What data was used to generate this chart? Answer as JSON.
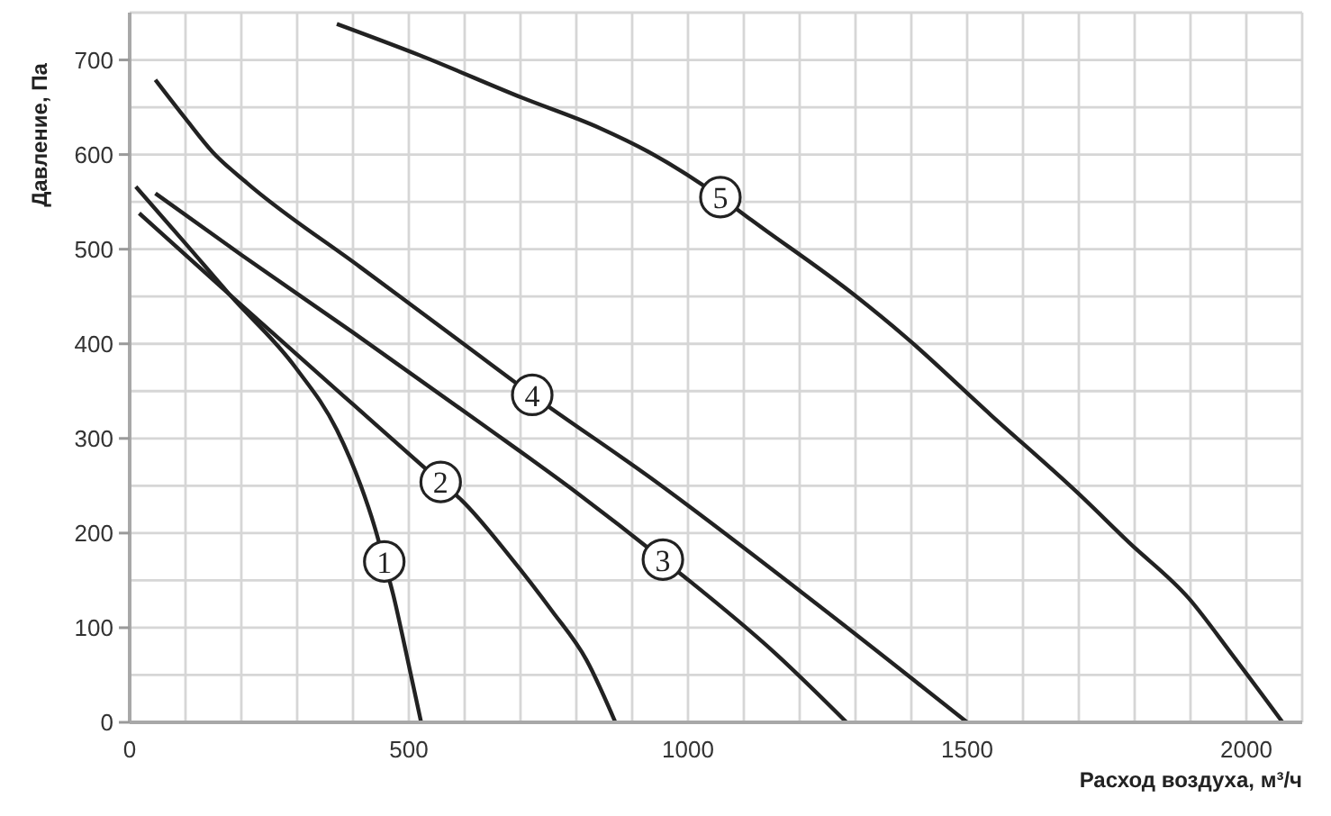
{
  "chart_data": {
    "type": "line",
    "xlabel": "Расход воздуха, м³/ч",
    "ylabel": "Давление, Па",
    "xlim": [
      0,
      2100
    ],
    "ylim": [
      0,
      750
    ],
    "xticks": [
      0,
      {
        "value": 100,
        "label": null
      },
      {
        "value": 200,
        "label": null
      },
      {
        "value": 300,
        "label": null
      },
      {
        "value": 400,
        "label": null
      },
      500,
      {
        "value": 600,
        "label": null
      },
      {
        "value": 700,
        "label": null
      },
      {
        "value": 800,
        "label": null
      },
      {
        "value": 900,
        "label": null
      },
      1000,
      {
        "value": 1100,
        "label": null
      },
      {
        "value": 1200,
        "label": null
      },
      {
        "value": 1300,
        "label": null
      },
      {
        "value": 1400,
        "label": null
      },
      1500,
      {
        "value": 1600,
        "label": null
      },
      {
        "value": 1700,
        "label": null
      },
      {
        "value": 1800,
        "label": null
      },
      {
        "value": 1900,
        "label": null
      },
      2000,
      {
        "value": 2100,
        "label": null
      }
    ],
    "yticks": [
      0,
      {
        "value": 50,
        "label": null
      },
      100,
      {
        "value": 150,
        "label": null
      },
      200,
      {
        "value": 250,
        "label": null
      },
      300,
      {
        "value": 350,
        "label": null
      },
      400,
      {
        "value": 450,
        "label": null
      },
      500,
      {
        "value": 550,
        "label": null
      },
      600,
      {
        "value": 650,
        "label": null
      },
      700,
      {
        "value": 750,
        "label": null
      }
    ],
    "grid": true,
    "series": [
      {
        "name": "1",
        "color": "#222222",
        "x": [
          11,
          100,
          179,
          297,
          371,
          414,
          439,
          456,
          472,
          495,
          522
        ],
        "values": [
          566,
          506,
          452,
          375,
          309,
          250,
          206,
          170,
          135,
          74,
          0
        ]
      },
      {
        "name": "2",
        "color": "#222222",
        "x": [
          17,
          179,
          400,
          557,
          594,
          680,
          756,
          818,
          870
        ],
        "values": [
          538,
          452,
          336,
          254,
          235,
          176,
          118,
          66,
          0
        ]
      },
      {
        "name": "3",
        "color": "#222222",
        "x": [
          46,
          200,
          400,
          629,
          800,
          955,
          1158,
          1284
        ],
        "values": [
          559,
          494,
          412,
          316,
          243,
          172,
          72,
          0
        ]
      },
      {
        "name": "4",
        "color": "#222222",
        "x": [
          46,
          100,
          148,
          210,
          413,
          600,
          721,
          929,
          1235,
          1500
        ],
        "values": [
          679,
          638,
          603,
          570,
          481,
          399,
          346,
          260,
          123,
          0
        ]
      },
      {
        "name": "5",
        "color": "#222222",
        "x": [
          371,
          519,
          703,
          842,
          929,
          1058,
          1113,
          1297,
          1390,
          1542,
          1697,
          1790,
          1897,
          1974,
          2065
        ],
        "values": [
          738,
          705,
          660,
          628,
          603,
          555,
          531,
          452,
          407,
          325,
          243,
          190,
          131,
          72,
          0
        ]
      }
    ]
  }
}
